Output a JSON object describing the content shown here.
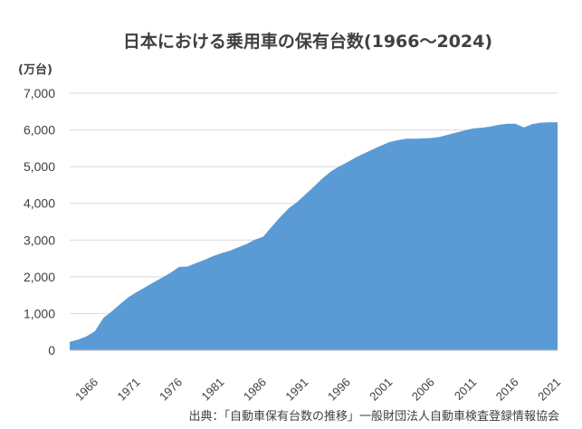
{
  "chart_data": {
    "type": "area",
    "title": "日本における乗用車の保有台数(1966～2024)",
    "ylabel": "(万台)",
    "xlabel": "",
    "ylim": [
      0,
      7000
    ],
    "yticks": [
      "0",
      "1,000",
      "2,000",
      "3,000",
      "4,000",
      "5,000",
      "6,000",
      "7,000"
    ],
    "xticks": [
      "1966",
      "1971",
      "1976",
      "1981",
      "1986",
      "1991",
      "1996",
      "2001",
      "2006",
      "2011",
      "2016",
      "2021"
    ],
    "grid": true,
    "legend": "none",
    "colors": {
      "area": "#5b9bd5",
      "grid": "#d9d9d9",
      "axis": "#bfbfbf"
    },
    "series": [
      {
        "x": [
          1966,
          1967,
          1968,
          1969,
          1970,
          1971,
          1972,
          1973,
          1974,
          1975,
          1976,
          1977,
          1978,
          1979,
          1980,
          1981,
          1982,
          1983,
          1984,
          1985,
          1986,
          1987,
          1988,
          1989,
          1990,
          1991,
          1992,
          1993,
          1994,
          1995,
          1996,
          1997,
          1998,
          1999,
          2000,
          2001,
          2002,
          2003,
          2004,
          2005,
          2006,
          2007,
          2008,
          2009,
          2010,
          2011,
          2012,
          2013,
          2014,
          2015,
          2016,
          2017,
          2018,
          2019,
          2020,
          2021,
          2022,
          2023,
          2024
        ],
        "values": [
          230,
          290,
          380,
          520,
          880,
          1060,
          1260,
          1450,
          1590,
          1720,
          1850,
          1980,
          2110,
          2270,
          2280,
          2370,
          2460,
          2560,
          2640,
          2710,
          2800,
          2890,
          3010,
          3090,
          3360,
          3620,
          3860,
          4030,
          4240,
          4450,
          4670,
          4860,
          5000,
          5120,
          5250,
          5360,
          5470,
          5570,
          5670,
          5720,
          5760,
          5760,
          5770,
          5780,
          5810,
          5870,
          5930,
          5990,
          6040,
          6060,
          6090,
          6140,
          6170,
          6170,
          6070,
          6160,
          6200,
          6210,
          6210
        ]
      }
    ],
    "source": "出典：「自動車保有台数の推移」一般財団法人自動車検査登録情報協会"
  }
}
